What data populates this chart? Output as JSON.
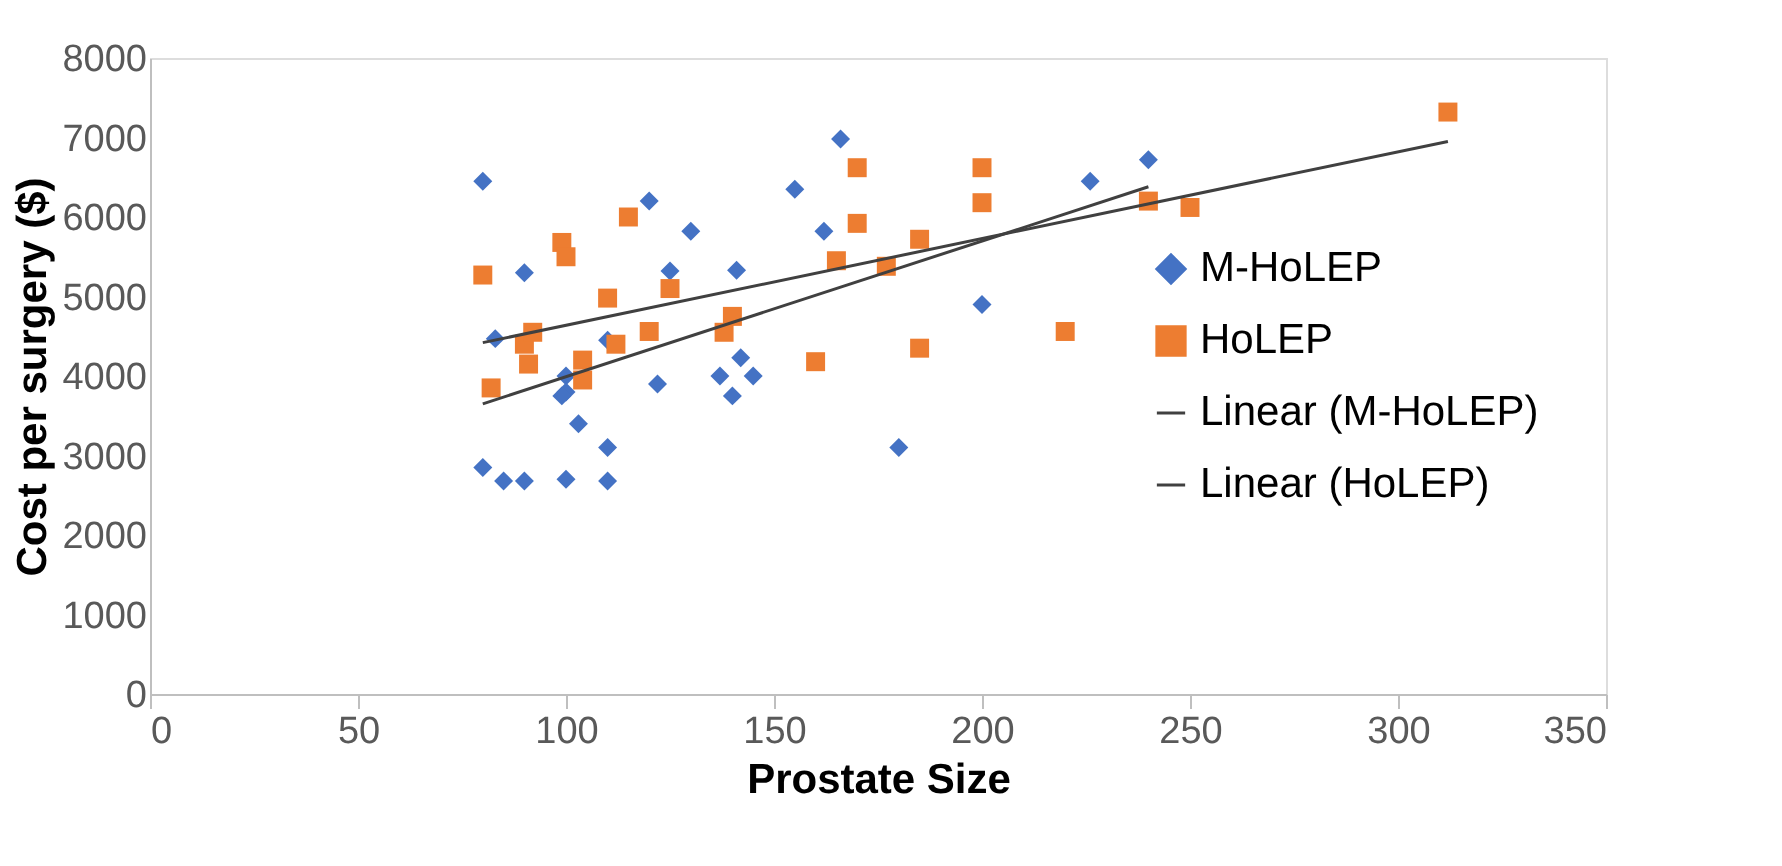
{
  "chart_data": {
    "type": "scatter",
    "xlabel": "Prostate Size",
    "ylabel": "Cost per surgery ($)",
    "xlim": [
      0,
      350
    ],
    "xticks": [
      0,
      50,
      100,
      150,
      200,
      250,
      300,
      350
    ],
    "ylim": [
      0,
      8000
    ],
    "yticks": [
      0,
      1000,
      2000,
      3000,
      4000,
      5000,
      6000,
      7000,
      8000
    ],
    "grid": false,
    "legend": "right",
    "series": [
      {
        "name": "M-HoLEP",
        "marker": "diamond",
        "color": "#4472c4",
        "x": [
          80,
          83,
          90,
          80,
          85,
          90,
          100,
          110,
          100,
          100,
          99,
          103,
          110,
          110,
          120,
          122,
          125,
          130,
          137,
          140,
          141,
          142,
          145,
          155,
          162,
          166,
          180,
          200,
          226,
          240
        ],
        "values": [
          6450,
          4470,
          5300,
          2850,
          2680,
          2680,
          2700,
          2680,
          4000,
          3800,
          3750,
          3400,
          3100,
          4450,
          6200,
          3900,
          5320,
          5820,
          4000,
          3750,
          5330,
          4230,
          4000,
          6350,
          5820,
          6980,
          3100,
          4900,
          6450,
          6720
        ]
      },
      {
        "name": "HoLEP",
        "marker": "square",
        "color": "#ed7d31",
        "x": [
          80,
          82,
          90,
          92,
          91,
          99,
          100,
          104,
          104,
          110,
          112,
          115,
          120,
          125,
          138,
          140,
          160,
          165,
          170,
          170,
          177,
          185,
          185,
          200,
          200,
          220,
          240,
          250,
          312
        ],
        "values": [
          5270,
          3850,
          4400,
          4550,
          4150,
          5680,
          5500,
          4200,
          3950,
          4980,
          4400,
          6000,
          4560,
          5100,
          4550,
          4750,
          4180,
          5450,
          6620,
          5920,
          5380,
          5720,
          4350,
          6620,
          6180,
          4560,
          6200,
          6120,
          7320
        ]
      },
      {
        "name": "Linear (M-HoLEP)",
        "type": "line",
        "line_style": "solid",
        "color": "#404040",
        "x": [
          80,
          240
        ],
        "values": [
          3650,
          6380
        ]
      },
      {
        "name": "Linear (HoLEP)",
        "type": "line",
        "line_style": "solid",
        "color": "#404040",
        "x": [
          80,
          312
        ],
        "values": [
          4420,
          6950
        ]
      }
    ]
  }
}
